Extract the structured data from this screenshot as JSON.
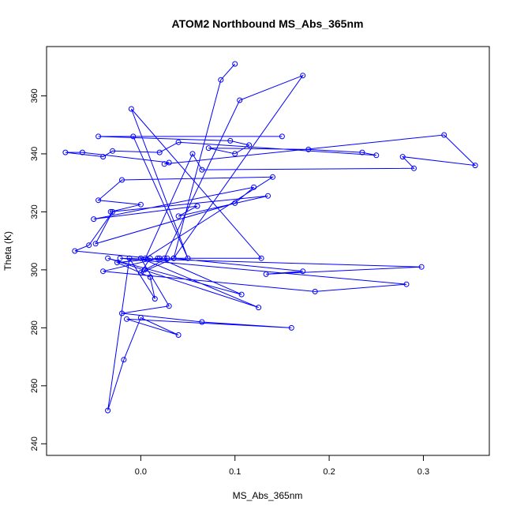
{
  "chart_data": {
    "type": "scatter",
    "title": "ATOM2 Northbound MS_Abs_365nm",
    "xlabel": "MS_Abs_365nm",
    "ylabel": "Theta (K)",
    "xlim": [
      -0.1,
      0.37
    ],
    "ylim": [
      236,
      377
    ],
    "xticks": [
      0.0,
      0.1,
      0.2,
      0.3
    ],
    "xtick_labels": [
      "0.0",
      "0.1",
      "0.2",
      "0.3"
    ],
    "yticks": [
      240,
      260,
      280,
      300,
      320,
      340,
      360
    ],
    "ytick_labels": [
      "240",
      "260",
      "280",
      "300",
      "320",
      "340",
      "360"
    ],
    "grid": false,
    "markers_connected": true,
    "series": [
      {
        "color": "#0000ff",
        "marker": "open-circle",
        "x": [
          0.1,
          0.085,
          0.035,
          0.172,
          0.105,
          0.025,
          0.128,
          -0.01,
          0.05,
          -0.008,
          0.15,
          -0.045,
          0.095,
          0.115,
          0.1,
          0.072,
          0.178,
          0.235,
          0.25,
          0.04,
          0.02,
          -0.03,
          -0.04,
          -0.08,
          -0.062,
          0.03,
          0.025,
          0.322,
          0.355,
          0.278,
          0.29,
          0.065,
          0.055,
          0.005,
          0.14,
          -0.02,
          -0.045,
          0.0,
          -0.032,
          0.135,
          0.04,
          0.06,
          -0.05,
          0.12,
          0.1,
          -0.048,
          -0.03,
          -0.055,
          -0.07,
          0.01,
          0.0,
          0.035,
          0.172,
          0.133,
          0.298,
          -0.022,
          0.282,
          0.185,
          -0.04,
          0.02,
          0.107,
          -0.035,
          0.125,
          0.0,
          0.03,
          -0.02,
          0.065,
          0.16,
          -0.015,
          0.04,
          0.0,
          -0.018,
          -0.035,
          -0.012,
          0.015,
          0.01,
          -0.025,
          0.018,
          0.028,
          0.004
        ],
        "y": [
          371,
          365.5,
          304,
          367,
          358.5,
          304,
          304,
          355.5,
          304,
          346,
          346,
          346,
          344.5,
          343,
          340,
          342,
          341.5,
          340.5,
          339.5,
          344,
          340.5,
          341,
          339,
          340.5,
          340.5,
          337,
          336.5,
          346.5,
          336,
          339,
          335,
          334.5,
          340,
          304,
          332,
          331,
          324,
          322.5,
          320,
          325.5,
          318.5,
          322,
          317.5,
          328.5,
          323,
          309,
          320,
          308.5,
          306.5,
          304,
          299,
          304,
          299.5,
          298.5,
          301,
          304,
          295,
          292.5,
          299.5,
          304,
          291.5,
          304,
          287,
          304,
          287.5,
          285,
          282,
          280,
          283,
          277.5,
          283.5,
          269,
          251.5,
          304,
          290,
          297.5,
          302.5,
          304,
          304,
          300
        ]
      }
    ]
  }
}
